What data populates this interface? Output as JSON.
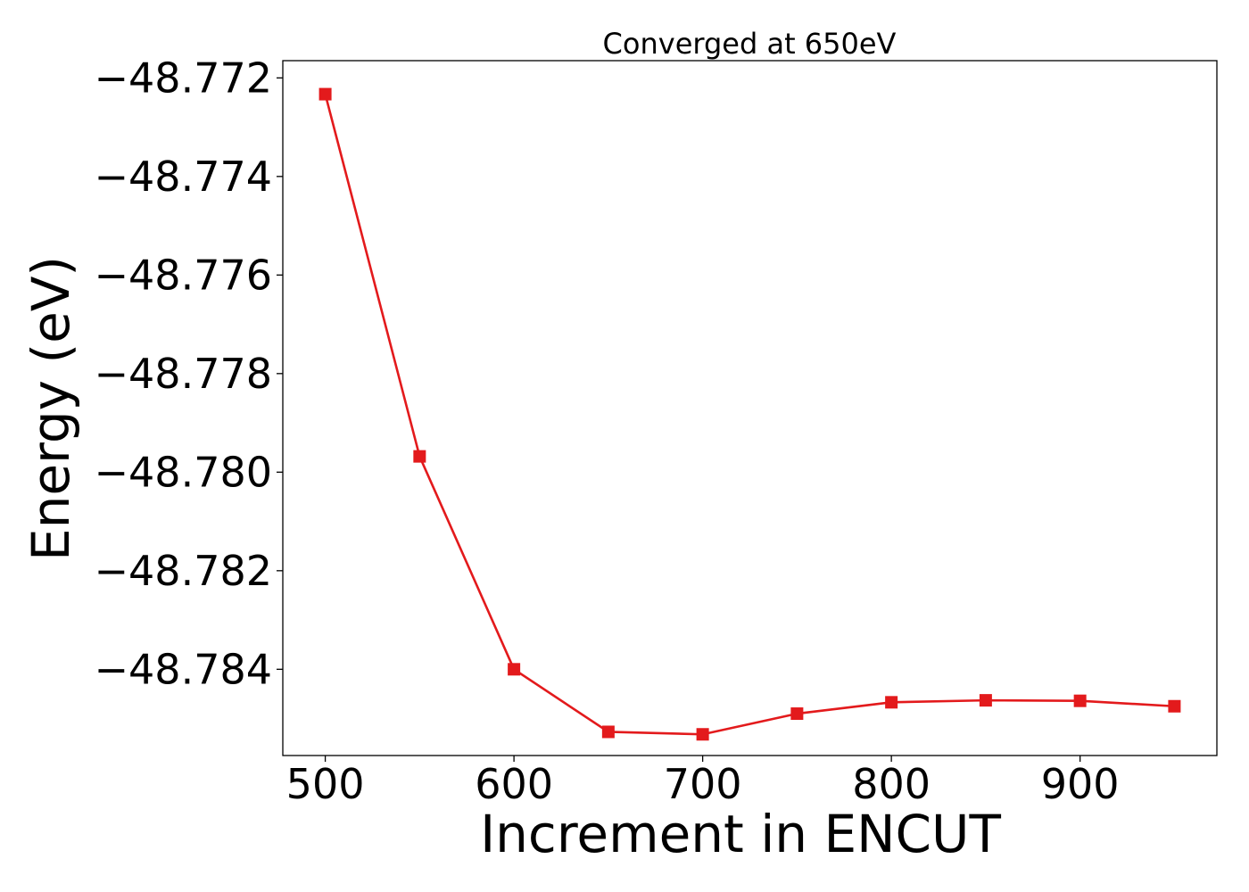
{
  "chart_data": {
    "type": "line",
    "title": "Converged at 650eV",
    "xlabel": "Increment in ENCUT",
    "ylabel": "Energy (eV)",
    "x": [
      500,
      550,
      600,
      650,
      700,
      750,
      800,
      850,
      900,
      950
    ],
    "series": [
      {
        "values": [
          -48.77233,
          -48.77968,
          -48.784,
          -48.78527,
          -48.78532,
          -48.7849,
          -48.78467,
          -48.78463,
          -48.78464,
          -48.78475
        ],
        "color": "#e31a1c",
        "marker": "square"
      }
    ],
    "xlim": [
      477.5,
      972.5
    ],
    "ylim": [
      -48.78575,
      -48.77165
    ],
    "xticks": [
      500,
      600,
      700,
      800,
      900
    ],
    "xtick_labels": [
      "500",
      "600",
      "700",
      "800",
      "900"
    ],
    "yticks": [
      -48.772,
      -48.774,
      -48.776,
      -48.778,
      -48.78,
      -48.782,
      -48.784
    ],
    "ytick_labels": [
      "−48.772",
      "−48.774",
      "−48.776",
      "−48.778",
      "−48.780",
      "−48.782",
      "−48.784"
    ],
    "grid": false,
    "legend": false
  }
}
